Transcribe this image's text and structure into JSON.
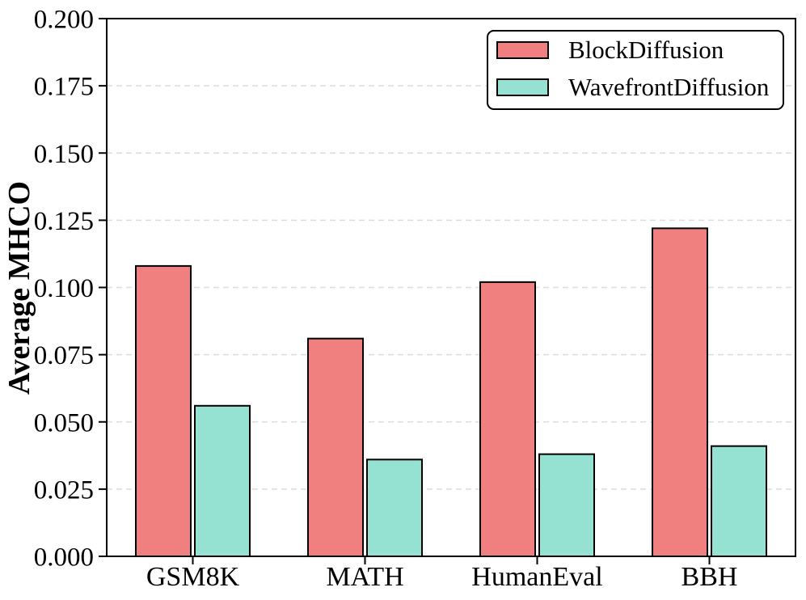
{
  "chart_data": {
    "type": "bar",
    "title": "",
    "categories": [
      "GSM8K",
      "MATH",
      "HumanEval",
      "BBH"
    ],
    "series": [
      {
        "name": "BlockDiffusion",
        "color": "#F08080",
        "values": [
          0.108,
          0.081,
          0.102,
          0.122
        ]
      },
      {
        "name": "WavefrontDiffusion",
        "color": "#96E2D2",
        "values": [
          0.056,
          0.036,
          0.038,
          0.041
        ]
      }
    ],
    "xlabel": "",
    "ylabel": "Average MHCO",
    "ylim": [
      0.0,
      0.2
    ],
    "ytick_step": 0.025,
    "ytick_labels": [
      "0.000",
      "0.025",
      "0.050",
      "0.075",
      "0.100",
      "0.125",
      "0.150",
      "0.175",
      "0.200"
    ],
    "grid": "horizontal-dashed",
    "grid_color": "#DCDCDC",
    "axis_color": "#000000",
    "bar_edge_color": "#000000",
    "legend_position": "upper-right",
    "background_color": "#FFFFFF"
  }
}
